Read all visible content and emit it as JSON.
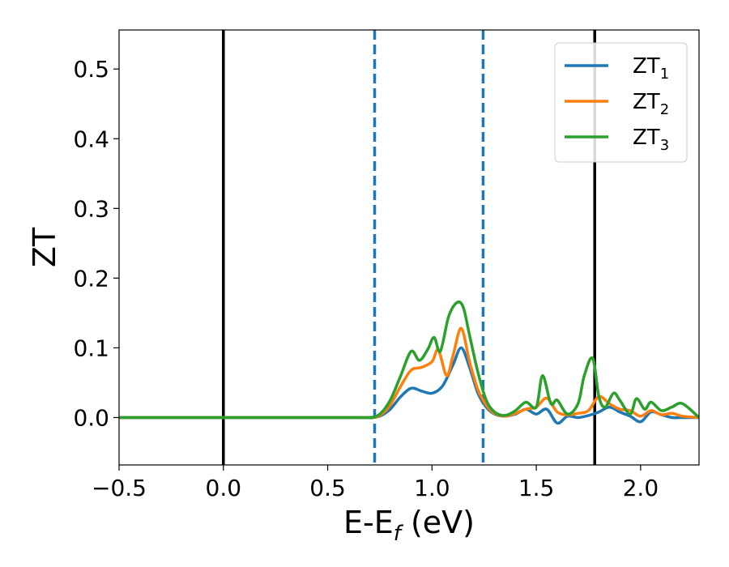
{
  "chart_data": {
    "type": "line",
    "xlabel": "E-E",
    "xlabel_sub": "f",
    "xlabel_unit": " (eV)",
    "ylabel": "ZT",
    "xlim": [
      -0.5,
      2.28
    ],
    "ylim": [
      -0.068,
      0.556
    ],
    "xticks": [
      -0.5,
      0.0,
      0.5,
      1.0,
      1.5,
      2.0
    ],
    "xtick_labels": [
      "−0.5",
      "0.0",
      "0.5",
      "1.0",
      "1.5",
      "2.0"
    ],
    "yticks": [
      0.0,
      0.1,
      0.2,
      0.3,
      0.4,
      0.5
    ],
    "ytick_labels": [
      "0.0",
      "0.1",
      "0.2",
      "0.3",
      "0.4",
      "0.5"
    ],
    "grid": false,
    "legend_position": "top-right",
    "vlines_solid": [
      0.0,
      1.78
    ],
    "vlines_dashed": [
      0.725,
      1.245
    ],
    "vline_solid_color": "#000000",
    "vline_dashed_color": "#1f77b4",
    "series": [
      {
        "name": "ZT",
        "name_sub": "1",
        "color": "#1f77b4",
        "x": [
          -0.5,
          0.6,
          0.7,
          0.75,
          0.8,
          0.85,
          0.9,
          0.95,
          1.0,
          1.05,
          1.1,
          1.14,
          1.18,
          1.22,
          1.26,
          1.3,
          1.35,
          1.4,
          1.45,
          1.5,
          1.55,
          1.6,
          1.65,
          1.7,
          1.75,
          1.8,
          1.85,
          1.9,
          1.95,
          2.0,
          2.05,
          2.1,
          2.15,
          2.2,
          2.28
        ],
        "y": [
          0.0,
          0.0,
          0.0,
          0.002,
          0.012,
          0.03,
          0.042,
          0.038,
          0.035,
          0.045,
          0.075,
          0.1,
          0.072,
          0.035,
          0.015,
          0.005,
          0.002,
          0.005,
          0.012,
          0.005,
          0.012,
          -0.008,
          0.002,
          0.0,
          0.003,
          0.008,
          0.015,
          0.008,
          0.002,
          -0.006,
          0.008,
          0.004,
          0.0,
          0.0,
          0.0
        ]
      },
      {
        "name": "ZT",
        "name_sub": "2",
        "color": "#ff7f0e",
        "x": [
          -0.5,
          0.6,
          0.7,
          0.75,
          0.8,
          0.85,
          0.9,
          0.95,
          1.0,
          1.03,
          1.07,
          1.1,
          1.14,
          1.18,
          1.22,
          1.26,
          1.3,
          1.35,
          1.4,
          1.45,
          1.5,
          1.55,
          1.6,
          1.65,
          1.7,
          1.75,
          1.8,
          1.85,
          1.9,
          1.95,
          2.0,
          2.05,
          2.1,
          2.15,
          2.2,
          2.28
        ],
        "y": [
          0.0,
          0.0,
          0.0,
          0.003,
          0.018,
          0.045,
          0.068,
          0.072,
          0.08,
          0.097,
          0.06,
          0.088,
          0.128,
          0.08,
          0.04,
          0.018,
          0.006,
          0.002,
          0.006,
          0.012,
          0.015,
          0.028,
          0.008,
          0.004,
          0.006,
          0.01,
          0.03,
          0.02,
          0.012,
          0.01,
          0.002,
          0.01,
          0.004,
          0.006,
          0.002,
          0.0
        ]
      },
      {
        "name": "ZT",
        "name_sub": "3",
        "color": "#2ca02c",
        "x": [
          -0.5,
          0.6,
          0.7,
          0.75,
          0.8,
          0.85,
          0.9,
          0.94,
          0.98,
          1.01,
          1.04,
          1.08,
          1.12,
          1.15,
          1.18,
          1.22,
          1.26,
          1.3,
          1.35,
          1.4,
          1.45,
          1.5,
          1.53,
          1.57,
          1.6,
          1.65,
          1.7,
          1.73,
          1.77,
          1.8,
          1.83,
          1.87,
          1.9,
          1.95,
          1.98,
          2.02,
          2.05,
          2.1,
          2.15,
          2.2,
          2.28
        ],
        "y": [
          0.0,
          0.0,
          0.0,
          0.005,
          0.025,
          0.06,
          0.095,
          0.082,
          0.098,
          0.115,
          0.095,
          0.145,
          0.165,
          0.158,
          0.118,
          0.065,
          0.025,
          0.008,
          0.003,
          0.01,
          0.022,
          0.015,
          0.06,
          0.02,
          0.025,
          0.005,
          0.02,
          0.06,
          0.085,
          0.03,
          0.015,
          0.035,
          0.025,
          0.005,
          0.027,
          0.012,
          0.022,
          0.01,
          0.015,
          0.02,
          0.0
        ]
      }
    ]
  }
}
